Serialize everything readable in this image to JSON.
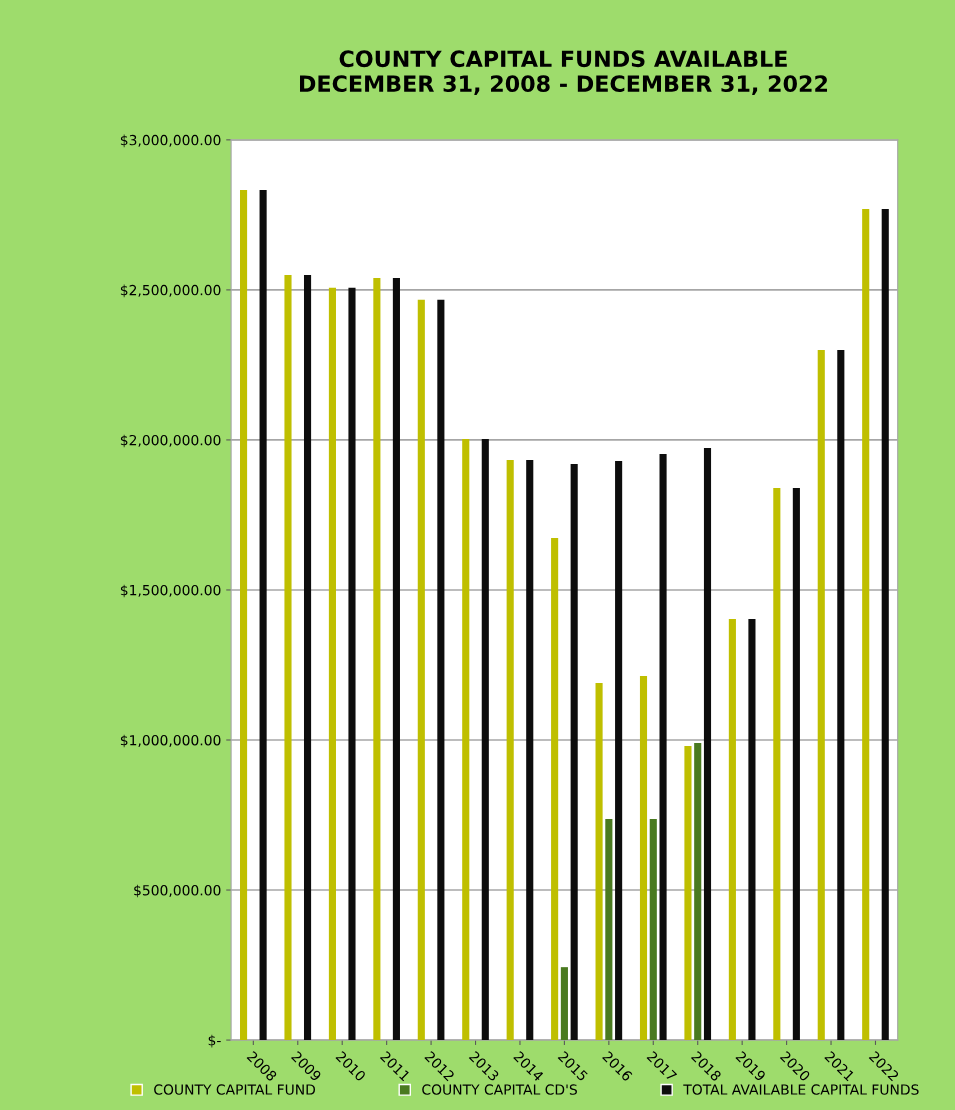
{
  "chart_data": {
    "type": "bar",
    "title": "COUNTY CAPITAL FUNDS AVAILABLE\nDECEMBER 31, 2008 - DECEMBER 31, 2022",
    "categories": [
      "2008",
      "2009",
      "2010",
      "2011",
      "2012",
      "2013",
      "2014",
      "2015",
      "2016",
      "2017",
      "2018",
      "2019",
      "2020",
      "2021",
      "2022"
    ],
    "series": [
      {
        "name": "COUNTY CAPITAL FUND",
        "color": "#bfbf00",
        "values": [
          2833000,
          2550000,
          2507000,
          2540000,
          2467000,
          2003000,
          1933000,
          1673000,
          1190000,
          1213000,
          980000,
          1403000,
          1840000,
          2300000,
          2770000
        ]
      },
      {
        "name": "COUNTY CAPITAL CD'S",
        "color": "#4a7a20",
        "values": [
          0,
          0,
          0,
          0,
          0,
          0,
          0,
          243000,
          737000,
          737000,
          990000,
          0,
          0,
          0,
          0
        ]
      },
      {
        "name": "TOTAL AVAILABLE CAPITAL FUNDS",
        "color": "#0d0d0d",
        "values": [
          2833000,
          2550000,
          2507000,
          2540000,
          2467000,
          2003000,
          1933000,
          1920000,
          1930000,
          1953000,
          1973000,
          1403000,
          1840000,
          2300000,
          2770000
        ]
      }
    ],
    "ylim": [
      0,
      3000000
    ],
    "yticks": [
      {
        "value": 0,
        "label": "$-"
      },
      {
        "value": 500000,
        "label": "$500,000.00"
      },
      {
        "value": 1000000,
        "label": "$1,000,000.00"
      },
      {
        "value": 1500000,
        "label": "$1,500,000.00"
      },
      {
        "value": 2000000,
        "label": "$2,000,000.00"
      },
      {
        "value": 2500000,
        "label": "$2,500,000.00"
      },
      {
        "value": 3000000,
        "label": "$3,000,000.00"
      }
    ],
    "grid": "y",
    "legend": "bottom"
  }
}
